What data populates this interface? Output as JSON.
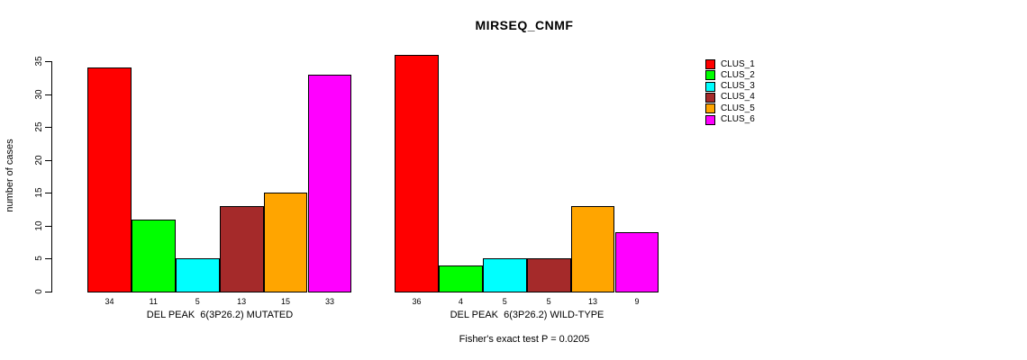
{
  "chart_data": {
    "type": "bar",
    "title": "MIRSEQ_CNMF",
    "ylabel": "number of cases",
    "ylim": [
      0,
      36.5
    ],
    "yticks": [
      0,
      5,
      10,
      15,
      20,
      25,
      30,
      35
    ],
    "grid": false,
    "legend_position": "right",
    "categories": [
      "CLUS_1",
      "CLUS_2",
      "CLUS_3",
      "CLUS_4",
      "CLUS_5",
      "CLUS_6"
    ],
    "colors": [
      "#ff0000",
      "#00ff00",
      "#00ffff",
      "#a52a2a",
      "#ffa500",
      "#ff00ff"
    ],
    "groups": [
      {
        "xlabel": "DEL PEAK  6(3P26.2) MUTATED",
        "values": [
          34,
          11,
          5,
          13,
          15,
          33
        ]
      },
      {
        "xlabel": "DEL PEAK  6(3P26.2) WILD-TYPE",
        "values": [
          36,
          4,
          5,
          5,
          13,
          9
        ]
      }
    ],
    "footer": "Fisher's exact test P = 0.0205"
  }
}
